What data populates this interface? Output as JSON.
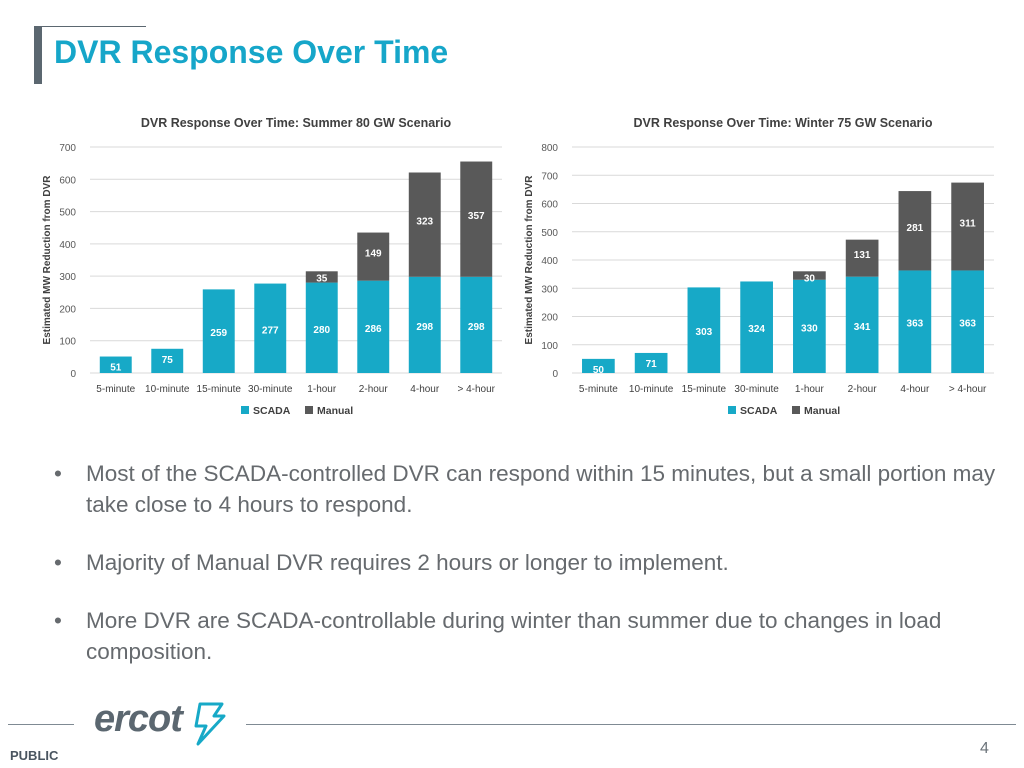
{
  "slide": {
    "title": "DVR Response Over Time",
    "bullets": [
      "Most of the SCADA-controlled DVR can respond within 15 minutes, but a small portion may take close to 4 hours to respond.",
      "Majority of Manual DVR requires 2 hours or longer to implement.",
      "More DVR are SCADA-controllable during winter than summer due to changes in load composition."
    ],
    "bullet_glyph": "•",
    "footer_label": "PUBLIC",
    "page_number": "4",
    "logo_text": "ercot"
  },
  "colors": {
    "scada": "#17a9c7",
    "manual": "#595959",
    "title": "#16a6c9",
    "grid": "#d9d9d9"
  },
  "chart_data": [
    {
      "type": "bar",
      "stacked": true,
      "title": "DVR Response Over Time: Summer 80 GW Scenario",
      "xlabel": "",
      "ylabel": "Estimated MW Reduction from DVR",
      "categories": [
        "5-minute",
        "10-minute",
        "15-minute",
        "30-minute",
        "1-hour",
        "2-hour",
        "4-hour",
        "> 4-hour"
      ],
      "series": [
        {
          "name": "SCADA",
          "values": [
            51,
            75,
            259,
            277,
            280,
            286,
            298,
            298
          ]
        },
        {
          "name": "Manual",
          "values": [
            0,
            0,
            0,
            0,
            35,
            149,
            323,
            357
          ]
        }
      ],
      "ylim": [
        0,
        700
      ],
      "yticks": [
        0,
        100,
        200,
        300,
        400,
        500,
        600,
        700
      ],
      "grid": true,
      "legend": "bottom"
    },
    {
      "type": "bar",
      "stacked": true,
      "title": "DVR Response Over Time: Winter 75 GW Scenario",
      "xlabel": "",
      "ylabel": "Estimated MW Reduction from DVR",
      "categories": [
        "5-minute",
        "10-minute",
        "15-minute",
        "30-minute",
        "1-hour",
        "2-hour",
        "4-hour",
        "> 4-hour"
      ],
      "series": [
        {
          "name": "SCADA",
          "values": [
            50,
            71,
            303,
            324,
            330,
            341,
            363,
            363
          ]
        },
        {
          "name": "Manual",
          "values": [
            0,
            0,
            0,
            0,
            30,
            131,
            281,
            311
          ]
        }
      ],
      "ylim": [
        0,
        800
      ],
      "yticks": [
        0,
        100,
        200,
        300,
        400,
        500,
        600,
        700,
        800
      ],
      "grid": true,
      "legend": "bottom"
    }
  ]
}
